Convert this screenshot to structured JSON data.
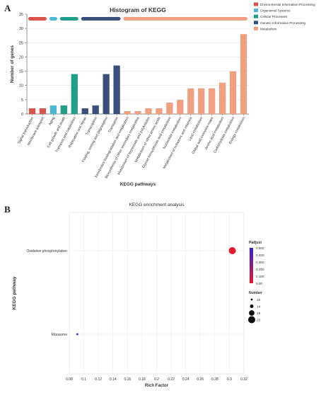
{
  "panelA": {
    "letter": "A",
    "chart_data": {
      "type": "bar",
      "title": "Histogram of KEGG",
      "xlabel": "KEGG pathways",
      "ylabel": "Number of genes",
      "ylim": [
        0,
        35
      ],
      "yticks": [
        0,
        5,
        10,
        15,
        20,
        25,
        30,
        35
      ],
      "grid": true,
      "legend_position": "top-right",
      "categories": [
        "Signal transduction",
        "Membrane transport",
        "Aging",
        "Cell growth and death",
        "Transport and catabolism",
        "Replication and repair",
        "Transcription",
        "Folding, sorting and degradation",
        "Translation",
        "Xenobiotics biodegradation and metabolism",
        "Biosynthesis of other secondary metabolites",
        "Metabolism of terpenoids and polyketides",
        "Metabolism of other amino acids",
        "Glycan biosynthesis and metabolism",
        "Nucleotide metabolism",
        "Metabolism of cofactors and vitamins",
        "Lipid metabolism",
        "Global and overview maps",
        "Amino acid metabolism",
        "Carbohydrate metabolism",
        "Energy metabolism"
      ],
      "values": [
        2,
        2,
        3,
        3,
        14,
        2,
        3,
        14,
        17,
        1,
        1,
        2,
        2,
        4,
        5,
        9,
        9,
        9,
        11,
        15,
        28
      ],
      "bar_groups": [
        "Environmental Information Processing",
        "Environmental Information Processing",
        "Organismal Systems",
        "Cellular Processes",
        "Cellular Processes",
        "Genetic Information Processing",
        "Genetic Information Processing",
        "Genetic Information Processing",
        "Genetic Information Processing",
        "Metabolism",
        "Metabolism",
        "Metabolism",
        "Metabolism",
        "Metabolism",
        "Metabolism",
        "Metabolism",
        "Metabolism",
        "Metabolism",
        "Metabolism",
        "Metabolism",
        "Metabolism"
      ],
      "legend": [
        {
          "name": "Environmental Information Processing",
          "color": "#d9534a"
        },
        {
          "name": "Organismal Systems",
          "color": "#4cb8d4"
        },
        {
          "name": "Cellular Processes",
          "color": "#1f9e89"
        },
        {
          "name": "Genetic Information Processing",
          "color": "#3b4f7d"
        },
        {
          "name": "Metabolism",
          "color": "#f0a07f"
        }
      ]
    }
  },
  "panelB": {
    "letter": "B",
    "chart_data": {
      "type": "scatter",
      "title": "KEGG enrichment analysis",
      "xlabel": "Rich Factor",
      "ylabel": "KEGG pathway",
      "xlim": [
        0.08,
        0.32
      ],
      "xticks": [
        0.08,
        0.1,
        0.12,
        0.14,
        0.16,
        0.18,
        0.2,
        0.22,
        0.24,
        0.26,
        0.28,
        0.3,
        0.32
      ],
      "xtick_labels": [
        "0.08",
        "0.1",
        "0.12",
        "0.14",
        "0.16",
        "0.18",
        "0.2",
        "0.22",
        "0.24",
        "0.26",
        "0.28",
        "0.3",
        "0.32"
      ],
      "categories": [
        "Ribosome",
        "Oxidative phosphorylation"
      ],
      "grid": true,
      "points": [
        {
          "pathway": "Oxidative phosphorylation",
          "x": 0.304,
          "number": 23,
          "padjust": 0.0
        },
        {
          "pathway": "Ribosome",
          "x": 0.091,
          "number": 10,
          "padjust": 0.5
        }
      ],
      "colorbar": {
        "title": "Padjust",
        "ticks": [
          "0.500",
          "0.400",
          "0.300",
          "0.200",
          "0.100",
          "0.00"
        ],
        "colors": [
          "#3b1cd9",
          "#e8192c"
        ]
      },
      "size_legend": {
        "title": "Number",
        "values": [
          10,
          14,
          19,
          23
        ]
      }
    }
  }
}
